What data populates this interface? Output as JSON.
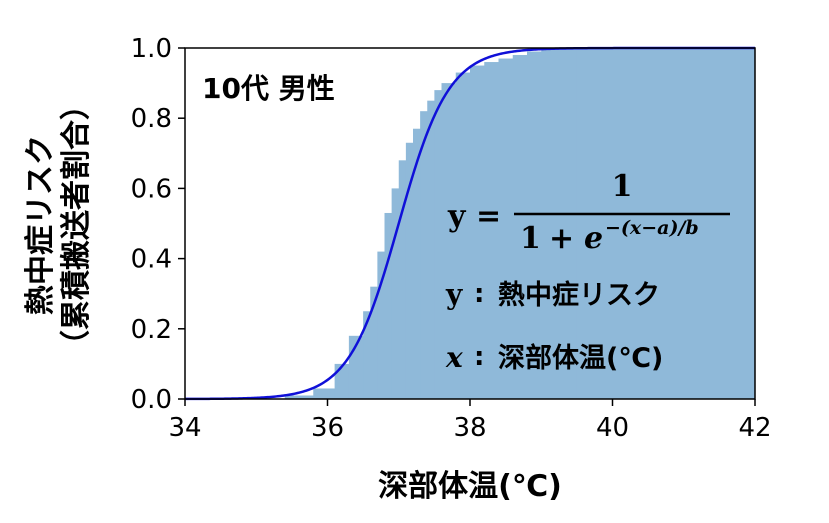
{
  "chart_data": {
    "type": "area",
    "xlabel": "深部体温(℃)",
    "ylabel_line1": "熱中症リスク",
    "ylabel_line2": "（累積搬送者割合）",
    "panel_label": "10代 男性",
    "xlim": [
      34,
      42
    ],
    "ylim": [
      0.0,
      1.0
    ],
    "xticks": [
      "34",
      "36",
      "38",
      "40",
      "42"
    ],
    "yticks": [
      "0.0",
      "0.2",
      "0.4",
      "0.6",
      "0.8",
      "1.0"
    ],
    "grid": false,
    "series": [
      {
        "kind": "step",
        "color": "#8fb9d9",
        "x": [
          35.4,
          35.8,
          36.1,
          36.3,
          36.5,
          36.6,
          36.7,
          36.8,
          36.9,
          37.0,
          37.1,
          37.2,
          37.3,
          37.4,
          37.5,
          37.6,
          37.8,
          38.0,
          38.2,
          38.4,
          38.6,
          38.8,
          39.0,
          39.5,
          40.0,
          42.0
        ],
        "y": [
          0.01,
          0.03,
          0.1,
          0.18,
          0.25,
          0.32,
          0.42,
          0.53,
          0.6,
          0.68,
          0.73,
          0.77,
          0.82,
          0.85,
          0.88,
          0.9,
          0.93,
          0.95,
          0.96,
          0.97,
          0.98,
          0.99,
          1.0,
          1.0,
          1.0,
          1.0
        ]
      },
      {
        "kind": "logistic",
        "color": "#1010d8",
        "a": 37.0,
        "b": 0.35
      }
    ],
    "annotations": {
      "formula_y": "y",
      "formula_eq": "=",
      "formula_numerator": "1",
      "formula_den_one": "1",
      "formula_den_plus": "+",
      "formula_den_e": "e",
      "formula_den_exp": "−(x−a)/b",
      "legend1_var": "y",
      "legend1_sep": ":",
      "legend1_text": "熱中症リスク",
      "legend2_var": "x",
      "legend2_sep": ":",
      "legend2_text": "深部体温(℃)"
    }
  }
}
